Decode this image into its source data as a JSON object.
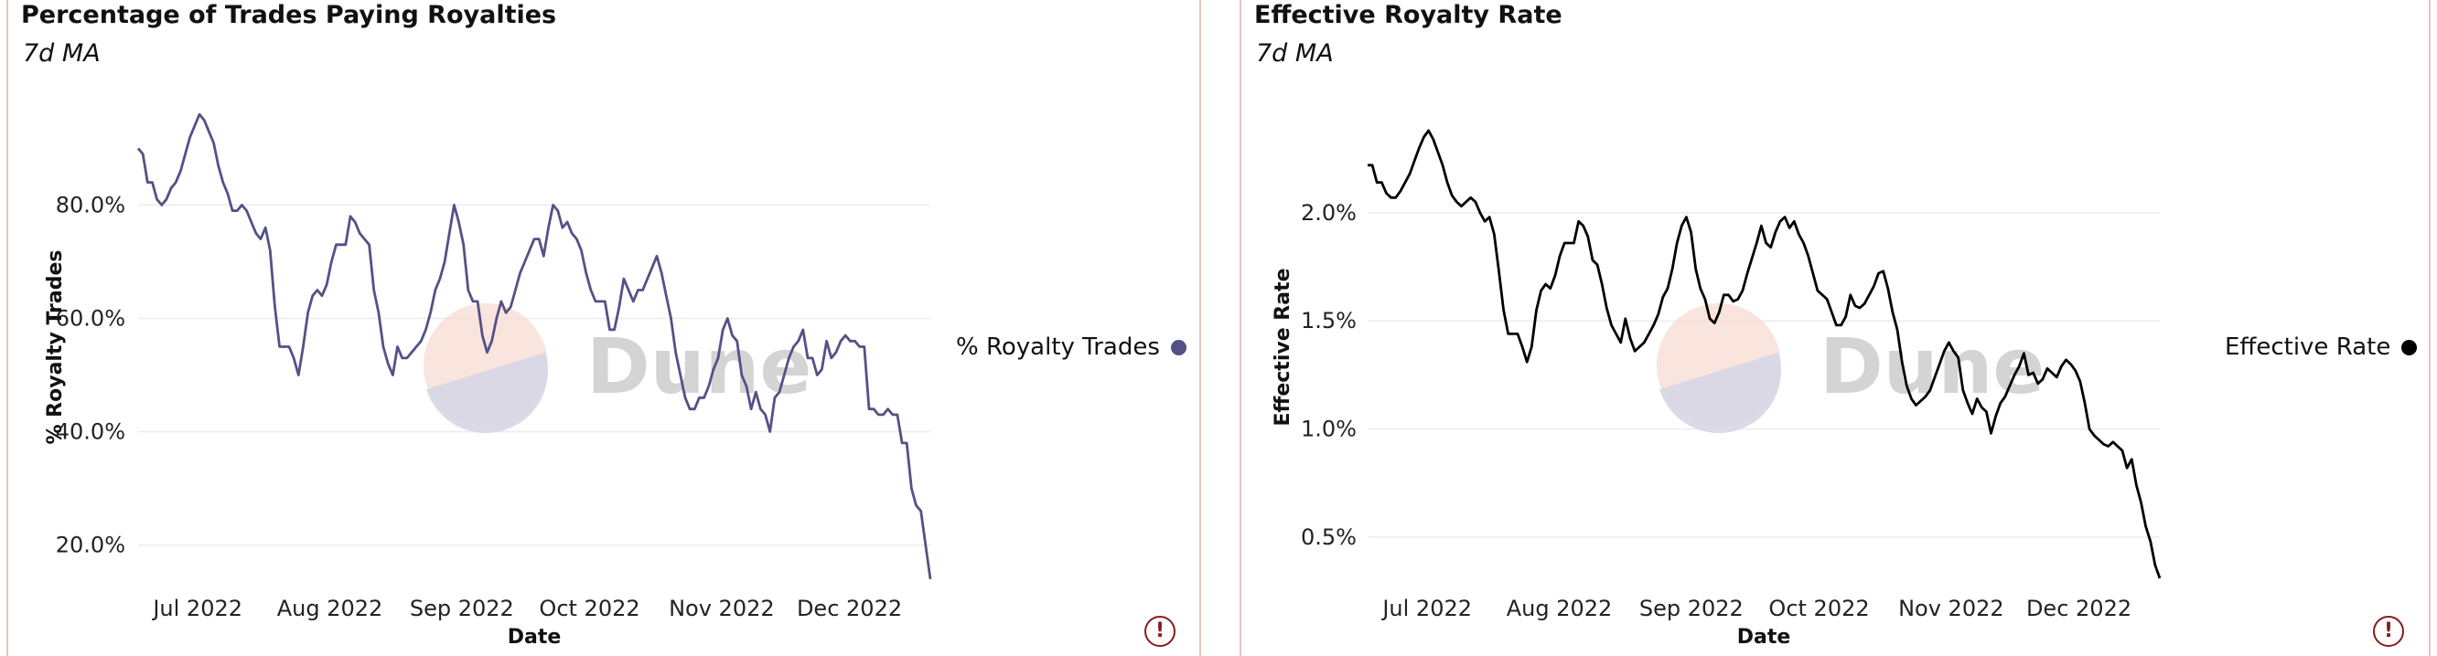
{
  "chart_data": [
    {
      "type": "line",
      "title": "Percentage of Trades Paying Royalties",
      "subtitle": "7d MA",
      "xlabel": "Date",
      "ylabel": "% Royalty Trades",
      "x_tick_labels": [
        "Jul 2022",
        "Aug 2022",
        "Sep 2022",
        "Oct 2022",
        "Nov 2022",
        "Dec 2022"
      ],
      "y_tick_labels": [
        "20.0%",
        "40.0%",
        "60.0%",
        "80.0%"
      ],
      "y_ticks": [
        20,
        40,
        60,
        80
      ],
      "x_range": [
        "2022-06-17",
        "2022-12-20"
      ],
      "ylim": [
        13,
        92
      ],
      "legend_label": "% Royalty Trades",
      "color": "#545187",
      "watermark": "Dune",
      "values": [
        90,
        89,
        84,
        84,
        81,
        80,
        81,
        83,
        84,
        86,
        89,
        92,
        94,
        96,
        95,
        93,
        91,
        87,
        84,
        82,
        79,
        79,
        80,
        79,
        77,
        75,
        74,
        76,
        72,
        62,
        55,
        55,
        55,
        53,
        50,
        55,
        61,
        64,
        65,
        64,
        66,
        70,
        73,
        73,
        73,
        78,
        77,
        75,
        74,
        73,
        65,
        61,
        55,
        52,
        50,
        55,
        53,
        53,
        54,
        55,
        56,
        58,
        61,
        65,
        67,
        70,
        75,
        80,
        77,
        73,
        65,
        63,
        63,
        57,
        54,
        56,
        60,
        63,
        61,
        62,
        65,
        68,
        70,
        72,
        74,
        74,
        71,
        76,
        80,
        79,
        76,
        77,
        75,
        74,
        72,
        68,
        65,
        63,
        63,
        63,
        58,
        58,
        62,
        67,
        65,
        63,
        65,
        65,
        67,
        69,
        71,
        68,
        64,
        60,
        54,
        50,
        46,
        44,
        44,
        46,
        46,
        48,
        51,
        53,
        58,
        60,
        57,
        56,
        50,
        48,
        44,
        47,
        44,
        43,
        40,
        46,
        47,
        50,
        53,
        55,
        56,
        58,
        53,
        53,
        50,
        51,
        56,
        53,
        54,
        56,
        57,
        56,
        56,
        55,
        55,
        44,
        44,
        43,
        43,
        44,
        43,
        43,
        38,
        38,
        30,
        27,
        26,
        20,
        14
      ]
    },
    {
      "type": "line",
      "title": "Effective Royalty Rate",
      "subtitle": "7d MA",
      "xlabel": "Date",
      "ylabel": "Effective Rate",
      "x_tick_labels": [
        "Jul 2022",
        "Aug 2022",
        "Sep 2022",
        "Oct 2022",
        "Nov 2022",
        "Dec 2022"
      ],
      "y_tick_labels": [
        "0.5%",
        "1.0%",
        "1.5%",
        "2.0%"
      ],
      "y_ticks": [
        0.5,
        1.0,
        1.5,
        2.0
      ],
      "x_range": [
        "2022-06-17",
        "2022-12-20"
      ],
      "ylim": [
        0.28,
        2.35
      ],
      "legend_label": "Effective Rate",
      "color": "#000000",
      "watermark": "Dune",
      "values": [
        2.22,
        2.22,
        2.14,
        2.14,
        2.09,
        2.07,
        2.07,
        2.1,
        2.14,
        2.18,
        2.24,
        2.3,
        2.35,
        2.38,
        2.34,
        2.28,
        2.22,
        2.14,
        2.08,
        2.05,
        2.03,
        2.05,
        2.07,
        2.05,
        2.0,
        1.96,
        1.98,
        1.9,
        1.73,
        1.55,
        1.44,
        1.44,
        1.44,
        1.38,
        1.31,
        1.38,
        1.55,
        1.64,
        1.67,
        1.65,
        1.71,
        1.8,
        1.86,
        1.86,
        1.86,
        1.96,
        1.94,
        1.89,
        1.78,
        1.76,
        1.67,
        1.56,
        1.48,
        1.44,
        1.4,
        1.51,
        1.42,
        1.36,
        1.38,
        1.4,
        1.44,
        1.48,
        1.53,
        1.61,
        1.65,
        1.74,
        1.86,
        1.94,
        1.98,
        1.91,
        1.74,
        1.65,
        1.6,
        1.51,
        1.49,
        1.54,
        1.62,
        1.62,
        1.59,
        1.6,
        1.64,
        1.72,
        1.79,
        1.86,
        1.94,
        1.86,
        1.84,
        1.91,
        1.96,
        1.98,
        1.93,
        1.96,
        1.9,
        1.86,
        1.8,
        1.72,
        1.64,
        1.62,
        1.6,
        1.54,
        1.48,
        1.48,
        1.52,
        1.62,
        1.57,
        1.56,
        1.58,
        1.62,
        1.66,
        1.72,
        1.73,
        1.65,
        1.54,
        1.46,
        1.31,
        1.2,
        1.14,
        1.11,
        1.13,
        1.15,
        1.18,
        1.24,
        1.3,
        1.36,
        1.4,
        1.36,
        1.33,
        1.18,
        1.12,
        1.07,
        1.14,
        1.1,
        1.08,
        0.98,
        1.06,
        1.12,
        1.15,
        1.2,
        1.25,
        1.29,
        1.35,
        1.25,
        1.26,
        1.21,
        1.23,
        1.28,
        1.26,
        1.24,
        1.29,
        1.32,
        1.3,
        1.27,
        1.22,
        1.12,
        1.0,
        0.97,
        0.95,
        0.93,
        0.92,
        0.94,
        0.92,
        0.9,
        0.82,
        0.86,
        0.74,
        0.66,
        0.55,
        0.48,
        0.37,
        0.31
      ]
    }
  ],
  "legend_right_label": "Effective Rate",
  "warning_icon_glyph": "!"
}
